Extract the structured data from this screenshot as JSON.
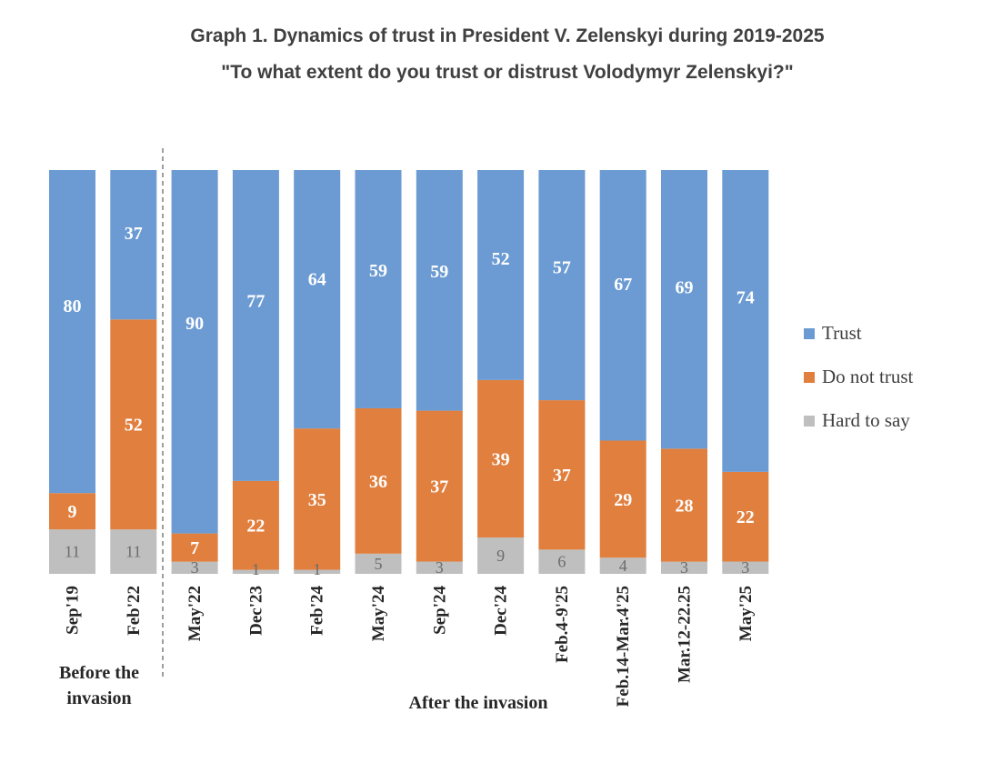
{
  "title": "Graph 1. Dynamics of trust in President V. Zelenskyi during 2019-2025",
  "subtitle": "\"To what extent do you trust or distrust Volodymyr Zelenskyi?\"",
  "chart_data": {
    "type": "bar",
    "stacked": true,
    "normalized_100": true,
    "categories": [
      "Sep'19",
      "Feb'22",
      "May'22",
      "Dec'23",
      "Feb'24",
      "May'24",
      "Sep'24",
      "Dec'24",
      "Feb.4-9'25",
      "Feb.14-Mar.4'25",
      "Mar.12-22.25",
      "May'25"
    ],
    "series": [
      {
        "name": "Hard to say",
        "color": "#bfbfbf",
        "values": [
          11,
          11,
          3,
          1,
          1,
          5,
          3,
          9,
          6,
          4,
          3,
          3
        ]
      },
      {
        "name": "Do not trust",
        "color": "#e07f3e",
        "values": [
          9,
          52,
          7,
          22,
          35,
          36,
          37,
          39,
          37,
          29,
          28,
          22
        ]
      },
      {
        "name": "Trust",
        "color": "#6b9bd2",
        "values": [
          80,
          37,
          90,
          77,
          64,
          59,
          59,
          52,
          57,
          67,
          69,
          74
        ]
      }
    ],
    "groups": [
      {
        "label": "Before the invasion",
        "categories": [
          "Sep'19",
          "Feb'22"
        ]
      },
      {
        "label": "After the invasion",
        "categories": [
          "May'22",
          "Dec'23",
          "Feb'24",
          "May'24",
          "Sep'24",
          "Dec'24",
          "Feb.4-9'25",
          "Feb.14-Mar.4'25",
          "Mar.12-22.25",
          "May'25"
        ]
      }
    ],
    "legend": {
      "position": "right",
      "entries": [
        "Trust",
        "Do not trust",
        "Hard to say"
      ]
    },
    "grid": false
  }
}
